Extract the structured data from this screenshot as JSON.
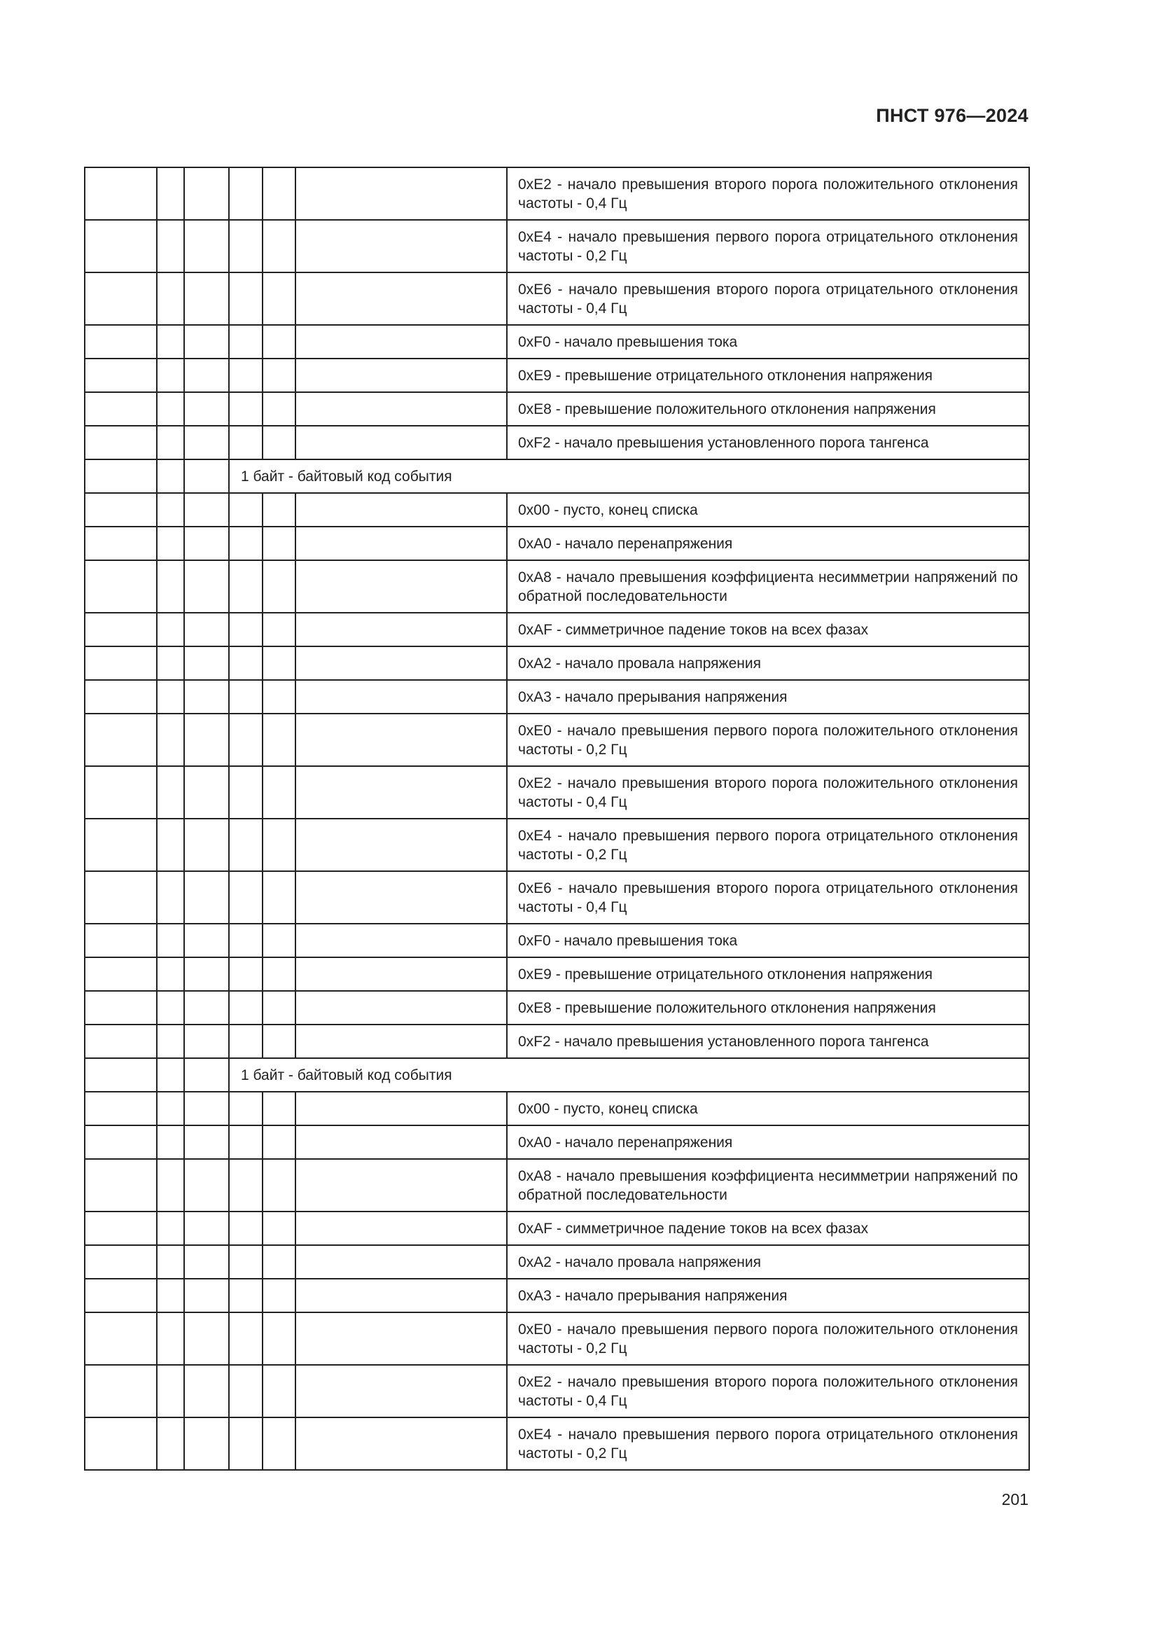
{
  "header": {
    "doc_code": "ПНСТ 976—2024"
  },
  "footer": {
    "page_number": "201"
  },
  "table": {
    "rows": [
      {
        "type": "entry",
        "lines": 2,
        "text": "0xE2 - начало превышения второго порога положительного отклонения частоты - 0,4 Гц"
      },
      {
        "type": "entry",
        "lines": 2,
        "text": "0xE4 - начало превышения первого порога отрицательного отклонения частоты - 0,2 Гц"
      },
      {
        "type": "entry",
        "lines": 2,
        "text": "0xE6 - начало превышения второго порога отрицательного отклонения частоты - 0,4 Гц"
      },
      {
        "type": "entry",
        "lines": 1,
        "text": "0xF0 - начало превышения тока"
      },
      {
        "type": "entry",
        "lines": 1,
        "text": "0xE9 - превышение отрицательного отклонения напряжения"
      },
      {
        "type": "entry",
        "lines": 1,
        "text": "0xE8 - превышение положительного отклонения напряжения"
      },
      {
        "type": "entry",
        "lines": 1,
        "text": "0xF2 - начало превышения установленного порога тангенса"
      },
      {
        "type": "header",
        "lines": 1,
        "text": "1 байт - байтовый код события"
      },
      {
        "type": "entry",
        "lines": 1,
        "text": "0x00 - пусто, конец списка"
      },
      {
        "type": "entry",
        "lines": 1,
        "text": "0xA0 - начало перенапряжения"
      },
      {
        "type": "entry",
        "lines": 2,
        "text": "0xA8 - начало превышения коэффициента несимметрии напряжений по обратной последовательности"
      },
      {
        "type": "entry",
        "lines": 1,
        "text": "0xAF - симметричное падение токов на всех фазах"
      },
      {
        "type": "entry",
        "lines": 1,
        "text": "0xA2 - начало провала напряжения"
      },
      {
        "type": "entry",
        "lines": 1,
        "text": "0xA3 - начало прерывания напряжения"
      },
      {
        "type": "entry",
        "lines": 2,
        "text": "0xE0 - начало превышения первого порога положительного отклонения частоты - 0,2 Гц"
      },
      {
        "type": "entry",
        "lines": 2,
        "text": "0xE2 - начало превышения второго порога положительного отклонения частоты - 0,4 Гц"
      },
      {
        "type": "entry",
        "lines": 2,
        "text": "0xE4 - начало превышения первого порога отрицательного отклонения частоты - 0,2 Гц"
      },
      {
        "type": "entry",
        "lines": 2,
        "text": "0xE6 - начало превышения второго порога отрицательного отклонения частоты - 0,4 Гц"
      },
      {
        "type": "entry",
        "lines": 1,
        "text": "0xF0 - начало превышения тока"
      },
      {
        "type": "entry",
        "lines": 1,
        "text": "0xE9 - превышение отрицательного отклонения напряжения"
      },
      {
        "type": "entry",
        "lines": 1,
        "text": "0xE8 - превышение положительного отклонения напряжения"
      },
      {
        "type": "entry",
        "lines": 1,
        "text": "0xF2 - начало превышения установленного порога тангенса"
      },
      {
        "type": "header",
        "lines": 1,
        "text": "1 байт - байтовый код события"
      },
      {
        "type": "entry",
        "lines": 1,
        "text": "0x00 - пусто, конец списка"
      },
      {
        "type": "entry",
        "lines": 1,
        "text": "0xA0 - начало перенапряжения"
      },
      {
        "type": "entry",
        "lines": 2,
        "text": "0xA8 - начало превышения коэффициента несимметрии напряжений по обратной последовательности"
      },
      {
        "type": "entry",
        "lines": 1,
        "text": "0xAF - симметричное падение токов на всех фазах"
      },
      {
        "type": "entry",
        "lines": 1,
        "text": "0xA2 - начало провала напряжения"
      },
      {
        "type": "entry",
        "lines": 1,
        "text": "0xA3 - начало прерывания напряжения"
      },
      {
        "type": "entry",
        "lines": 2,
        "text": "0xE0 - начало превышения первого порога положительного отклонения частоты - 0,2 Гц"
      },
      {
        "type": "entry",
        "lines": 2,
        "text": "0xE2 - начало превышения второго порога положительного отклонения частоты - 0,4 Гц"
      },
      {
        "type": "entry",
        "lines": 2,
        "text": "0xE4 - начало превышения первого порога отрицательного отклонения частоты - 0,2 Гц"
      }
    ]
  }
}
